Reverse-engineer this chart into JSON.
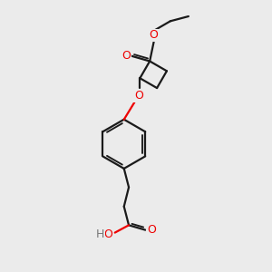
{
  "bg_color": "#ebebeb",
  "bond_color": "#1a1a1a",
  "o_color": "#ee0000",
  "h_color": "#777777",
  "line_width": 1.6,
  "fig_size": [
    3.0,
    3.0
  ],
  "dpi": 100,
  "xlim": [
    0,
    10
  ],
  "ylim": [
    0,
    10
  ]
}
